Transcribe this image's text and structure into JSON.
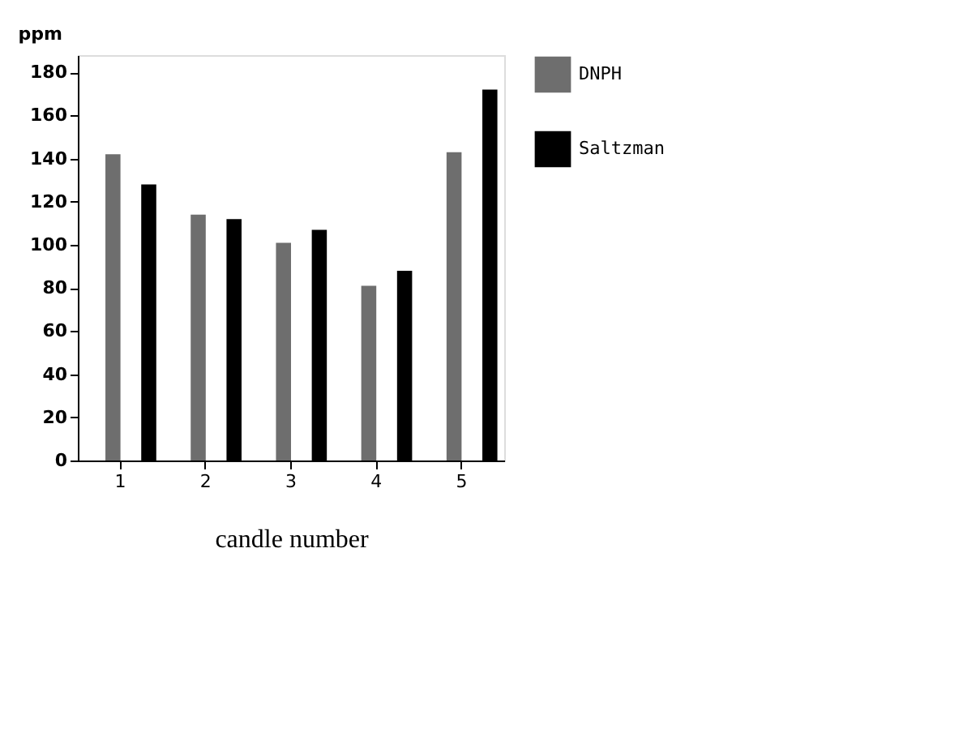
{
  "chart_data": {
    "type": "bar",
    "xlabel": "candle number",
    "ylabel": "ppm",
    "categories": [
      "1",
      "2",
      "3",
      "4",
      "5"
    ],
    "series": [
      {
        "name": "DNPH",
        "color": "#6e6e6e",
        "values": [
          142,
          114,
          101,
          81,
          143
        ]
      },
      {
        "name": "Saltzman",
        "color": "#000000",
        "values": [
          128,
          112,
          107,
          88,
          172
        ]
      }
    ],
    "ylim": [
      0,
      188
    ],
    "yticks": [
      0,
      20,
      40,
      60,
      80,
      100,
      120,
      140,
      160,
      180
    ],
    "grid": false,
    "legend": "right"
  }
}
